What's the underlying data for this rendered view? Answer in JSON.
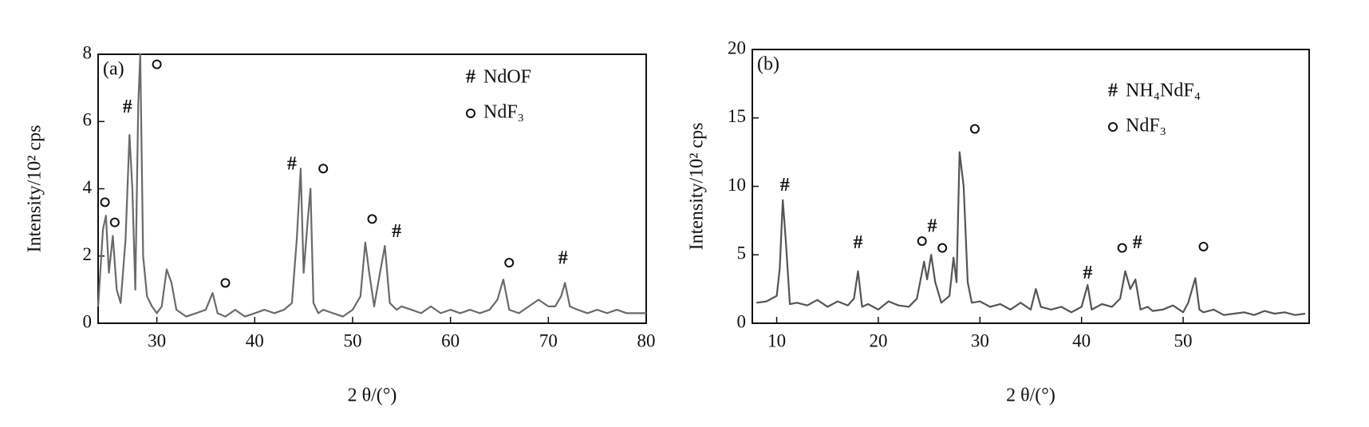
{
  "chart_data": [
    {
      "type": "line",
      "panel_label": "(a)",
      "xlabel": "2 θ/(°)",
      "ylabel": "Intensity/10² cps",
      "xlim": [
        24,
        80
      ],
      "xticks": [
        30,
        40,
        50,
        60,
        70,
        80
      ],
      "ylim": [
        0,
        8
      ],
      "yticks": [
        0,
        2,
        4,
        6,
        8
      ],
      "legend": "upper right",
      "series": [
        {
          "color": "#6a6a6a",
          "x": [
            24.0,
            24.5,
            24.8,
            25.1,
            25.5,
            25.9,
            26.3,
            26.8,
            27.2,
            27.5,
            27.8,
            28.1,
            28.3,
            28.6,
            29.0,
            29.5,
            30.0,
            30.5,
            31.0,
            31.5,
            32.0,
            33,
            34,
            35,
            35.7,
            36.2,
            37,
            38,
            39,
            40,
            41,
            42,
            43,
            43.8,
            44.3,
            44.7,
            45.0,
            45.4,
            45.7,
            46.0,
            46.5,
            47,
            48,
            49,
            50,
            50.8,
            51.3,
            51.7,
            52.2,
            52.8,
            53.3,
            53.8,
            54.5,
            55,
            56,
            57,
            58,
            59,
            60,
            61,
            62,
            63,
            64,
            64.8,
            65.4,
            66,
            67,
            68,
            69,
            70,
            70.7,
            71.3,
            71.7,
            72.2,
            73,
            74,
            75,
            76,
            77,
            78,
            79,
            80
          ],
          "values": [
            0.5,
            2.8,
            3.2,
            1.5,
            2.6,
            1.0,
            0.6,
            2.5,
            5.6,
            4.0,
            1.0,
            6.5,
            8.0,
            2.0,
            0.8,
            0.5,
            0.3,
            0.5,
            1.6,
            1.2,
            0.4,
            0.2,
            0.3,
            0.4,
            0.9,
            0.3,
            0.2,
            0.4,
            0.2,
            0.3,
            0.4,
            0.3,
            0.4,
            0.6,
            2.5,
            4.6,
            1.5,
            3.0,
            4.0,
            0.6,
            0.3,
            0.4,
            0.3,
            0.2,
            0.4,
            0.8,
            2.4,
            1.5,
            0.5,
            1.5,
            2.3,
            0.6,
            0.4,
            0.5,
            0.4,
            0.3,
            0.5,
            0.3,
            0.4,
            0.3,
            0.4,
            0.3,
            0.4,
            0.7,
            1.3,
            0.4,
            0.3,
            0.5,
            0.7,
            0.5,
            0.5,
            0.8,
            1.2,
            0.5,
            0.4,
            0.3,
            0.4,
            0.3,
            0.4,
            0.3,
            0.3,
            0.3
          ]
        },
        {
          "name": "NdOF",
          "symbol": "#",
          "x": [
            27,
            43.8,
            54.5,
            71.5
          ],
          "values": [
            6.4,
            4.7,
            2.7,
            1.9
          ]
        },
        {
          "name": "NdF₃",
          "marker": "circle",
          "x": [
            24.7,
            25.7,
            30,
            37,
            47,
            52,
            66
          ],
          "values": [
            3.6,
            3.0,
            7.7,
            1.2,
            4.6,
            3.1,
            1.8
          ]
        }
      ]
    },
    {
      "type": "line",
      "panel_label": "(b)",
      "xlabel": "2 θ/(°)",
      "ylabel": "Intensity/10² cps",
      "xlim": [
        7.6,
        62.4
      ],
      "xticks": [
        10,
        20,
        30,
        40,
        50
      ],
      "ylim": [
        0,
        20
      ],
      "yticks": [
        0,
        5,
        10,
        15,
        20
      ],
      "legend": "upper right",
      "series": [
        {
          "color": "#555555",
          "x": [
            8,
            9,
            10,
            10.3,
            10.6,
            10.9,
            11.3,
            12,
            13,
            14,
            15,
            16,
            17,
            17.6,
            18,
            18.4,
            19,
            20,
            21,
            22,
            23,
            23.8,
            24.5,
            24.8,
            25.2,
            25.6,
            26.2,
            27,
            27.4,
            27.7,
            28,
            28.4,
            28.8,
            29.2,
            30,
            31,
            32,
            33,
            34,
            35,
            35.5,
            36,
            37,
            38,
            39,
            40,
            40.6,
            41,
            42,
            43,
            43.8,
            44.3,
            44.8,
            45.3,
            45.8,
            46.5,
            47,
            48,
            49,
            50,
            50.5,
            51.2,
            51.6,
            52,
            53,
            54,
            55,
            56,
            57,
            58,
            59,
            60,
            61,
            62
          ],
          "values": [
            1.5,
            1.6,
            2.0,
            4,
            9,
            6,
            1.4,
            1.5,
            1.3,
            1.7,
            1.2,
            1.6,
            1.3,
            1.8,
            3.8,
            1.2,
            1.4,
            1.0,
            1.6,
            1.3,
            1.2,
            1.8,
            4.5,
            3.2,
            5,
            3,
            1.5,
            2,
            4.8,
            3,
            12.5,
            10,
            3,
            1.5,
            1.6,
            1.2,
            1.4,
            1.0,
            1.5,
            1.0,
            2.5,
            1.2,
            1.0,
            1.2,
            0.8,
            1.2,
            2.8,
            1.0,
            1.4,
            1.2,
            1.8,
            3.8,
            2.5,
            3.2,
            1.0,
            1.2,
            0.9,
            1.0,
            1.3,
            0.8,
            1.5,
            3.3,
            1.0,
            0.8,
            1.0,
            0.6,
            0.7,
            0.8,
            0.6,
            0.9,
            0.7,
            0.8,
            0.6,
            0.7
          ]
        },
        {
          "name": "NH₄NdF₄",
          "symbol": "#",
          "x": [
            10.8,
            18,
            25.3,
            40.6,
            45.5
          ],
          "values": [
            10,
            5.8,
            7,
            3.6,
            5.8
          ]
        },
        {
          "name": "NdF₃",
          "marker": "circle",
          "x": [
            24.3,
            26.3,
            29.5,
            44,
            52
          ],
          "values": [
            6,
            5.5,
            14.2,
            5.5,
            5.6
          ]
        }
      ]
    }
  ]
}
